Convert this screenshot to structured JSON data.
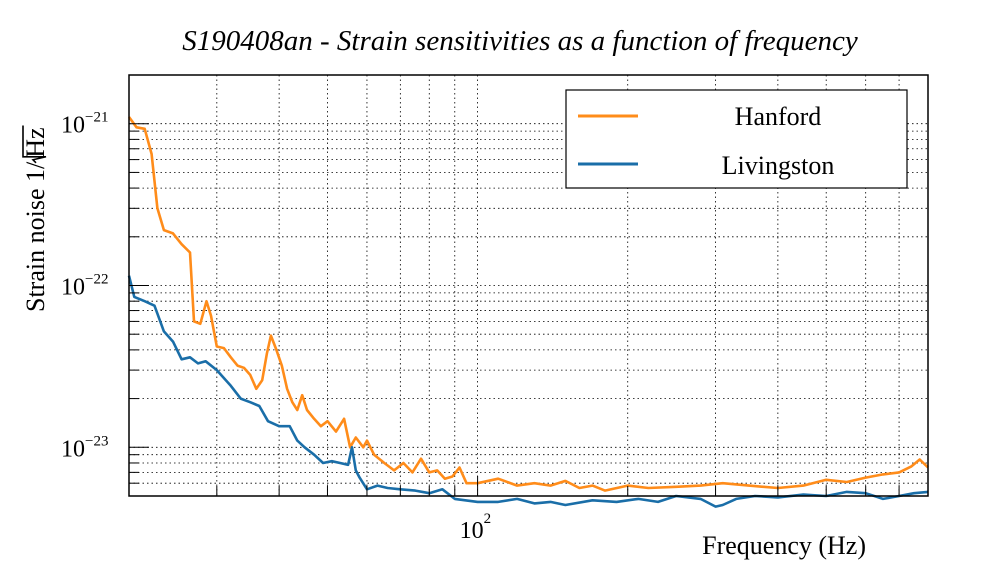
{
  "chart_data": {
    "type": "line",
    "title": "S190408an - Strain sensitivities as a function of frequency",
    "xlabel": "Frequency (Hz)",
    "ylabel": "Strain noise 1/√Hz",
    "ylabel_main": "Strain noise 1/",
    "ylabel_sqrt": "Hz",
    "x_scale": "log",
    "y_scale": "log",
    "xlim": [
      20,
      800
    ],
    "ylim": [
      5e-24,
      2e-21
    ],
    "grid": true,
    "legend_position": "top-right",
    "x_tick_labels": [
      {
        "value": 100,
        "base": "10",
        "exp": "2"
      }
    ],
    "y_tick_labels": [
      {
        "value": 1e-21,
        "base": "10",
        "exp": "−21"
      },
      {
        "value": 1e-22,
        "base": "10",
        "exp": "−22"
      },
      {
        "value": 1e-23,
        "base": "10",
        "exp": "−23"
      }
    ],
    "series": [
      {
        "name": "Hanford",
        "color": "#ff8c1a",
        "points": [
          [
            20,
            1.1e-21
          ],
          [
            20.7,
            9.5e-22
          ],
          [
            21.5,
            9.3e-22
          ],
          [
            22.2,
            6.5e-22
          ],
          [
            22.8,
            3e-22
          ],
          [
            23.5,
            2.2e-22
          ],
          [
            24.5,
            2.1e-22
          ],
          [
            25.5,
            1.8e-22
          ],
          [
            26.5,
            1.6e-22
          ],
          [
            27.0,
            6e-23
          ],
          [
            27.8,
            5.8e-23
          ],
          [
            28.6,
            8e-23
          ],
          [
            29.2,
            6.5e-23
          ],
          [
            30,
            4.2e-23
          ],
          [
            31,
            4.1e-23
          ],
          [
            32,
            3.6e-23
          ],
          [
            33,
            3.2e-23
          ],
          [
            34,
            3.1e-23
          ],
          [
            35,
            2.8e-23
          ],
          [
            36,
            2.3e-23
          ],
          [
            37,
            2.6e-23
          ],
          [
            37.8,
            3.8e-23
          ],
          [
            38.5,
            4.9e-23
          ],
          [
            39.5,
            4e-23
          ],
          [
            40.5,
            3.2e-23
          ],
          [
            41.5,
            2.3e-23
          ],
          [
            42.5,
            1.9e-23
          ],
          [
            43.5,
            1.7e-23
          ],
          [
            44.5,
            2.1e-23
          ],
          [
            45.5,
            1.7e-23
          ],
          [
            47,
            1.5e-23
          ],
          [
            48.5,
            1.35e-23
          ],
          [
            50,
            1.45e-23
          ],
          [
            52,
            1.25e-23
          ],
          [
            54,
            1.5e-23
          ],
          [
            55.5,
            1e-23
          ],
          [
            57,
            1.15e-23
          ],
          [
            59,
            1e-23
          ],
          [
            60,
            1.1e-23
          ],
          [
            62,
            9e-24
          ],
          [
            65,
            8e-24
          ],
          [
            68,
            7.2e-24
          ],
          [
            71,
            8e-24
          ],
          [
            74,
            7e-24
          ],
          [
            77,
            8.5e-24
          ],
          [
            80,
            7e-24
          ],
          [
            83,
            7.2e-24
          ],
          [
            86,
            6.4e-24
          ],
          [
            89,
            6.6e-24
          ],
          [
            92,
            7.5e-24
          ],
          [
            95,
            6e-24
          ],
          [
            100,
            6e-24
          ],
          [
            110,
            6.4e-24
          ],
          [
            120,
            5.8e-24
          ],
          [
            130,
            6e-24
          ],
          [
            140,
            5.8e-24
          ],
          [
            150,
            6.2e-24
          ],
          [
            160,
            5.6e-24
          ],
          [
            170,
            5.8e-24
          ],
          [
            180,
            5.4e-24
          ],
          [
            200,
            5.8e-24
          ],
          [
            220,
            5.6e-24
          ],
          [
            250,
            5.7e-24
          ],
          [
            280,
            5.8e-24
          ],
          [
            310,
            6e-24
          ],
          [
            350,
            5.8e-24
          ],
          [
            400,
            5.6e-24
          ],
          [
            450,
            5.8e-24
          ],
          [
            500,
            6.3e-24
          ],
          [
            550,
            6.1e-24
          ],
          [
            600,
            6.5e-24
          ],
          [
            650,
            6.8e-24
          ],
          [
            700,
            7e-24
          ],
          [
            740,
            7.6e-24
          ],
          [
            770,
            8.4e-24
          ],
          [
            800,
            7.5e-24
          ]
        ]
      },
      {
        "name": "Livingston",
        "color": "#1a6ea8",
        "points": [
          [
            20,
            1.15e-22
          ],
          [
            20.5,
            8.5e-23
          ],
          [
            21.5,
            8e-23
          ],
          [
            22.5,
            7.5e-23
          ],
          [
            23.5,
            5.2e-23
          ],
          [
            24.5,
            4.5e-23
          ],
          [
            25.5,
            3.5e-23
          ],
          [
            26.5,
            3.6e-23
          ],
          [
            27.5,
            3.3e-23
          ],
          [
            28.5,
            3.4e-23
          ],
          [
            30,
            3e-23
          ],
          [
            32,
            2.4e-23
          ],
          [
            33.5,
            2e-23
          ],
          [
            35,
            1.9e-23
          ],
          [
            36.5,
            1.8e-23
          ],
          [
            38,
            1.45e-23
          ],
          [
            40,
            1.35e-23
          ],
          [
            42,
            1.35e-23
          ],
          [
            43.5,
            1.1e-23
          ],
          [
            45,
            1e-23
          ],
          [
            47,
            9e-24
          ],
          [
            49,
            8e-24
          ],
          [
            51,
            8.2e-24
          ],
          [
            53,
            8e-24
          ],
          [
            55,
            7.8e-24
          ],
          [
            56,
            1e-23
          ],
          [
            57,
            7.2e-24
          ],
          [
            58,
            6.5e-24
          ],
          [
            60,
            5.5e-24
          ],
          [
            63,
            5.8e-24
          ],
          [
            66,
            5.6e-24
          ],
          [
            70,
            5.5e-24
          ],
          [
            75,
            5.4e-24
          ],
          [
            80,
            5.2e-24
          ],
          [
            85,
            5.5e-24
          ],
          [
            90,
            4.8e-24
          ],
          [
            100,
            4.6e-24
          ],
          [
            110,
            4.6e-24
          ],
          [
            120,
            4.8e-24
          ],
          [
            130,
            4.5e-24
          ],
          [
            140,
            4.6e-24
          ],
          [
            150,
            4.4e-24
          ],
          [
            170,
            4.7e-24
          ],
          [
            190,
            4.6e-24
          ],
          [
            210,
            4.8e-24
          ],
          [
            230,
            4.6e-24
          ],
          [
            250,
            5e-24
          ],
          [
            280,
            4.8e-24
          ],
          [
            300,
            4.3e-24
          ],
          [
            310,
            4.4e-24
          ],
          [
            330,
            4.8e-24
          ],
          [
            360,
            5e-24
          ],
          [
            400,
            4.9e-24
          ],
          [
            450,
            5.1e-24
          ],
          [
            500,
            5e-24
          ],
          [
            550,
            5.3e-24
          ],
          [
            600,
            5.2e-24
          ],
          [
            650,
            4.8e-24
          ],
          [
            700,
            5e-24
          ],
          [
            750,
            5.2e-24
          ],
          [
            800,
            5.3e-24
          ]
        ]
      }
    ]
  }
}
